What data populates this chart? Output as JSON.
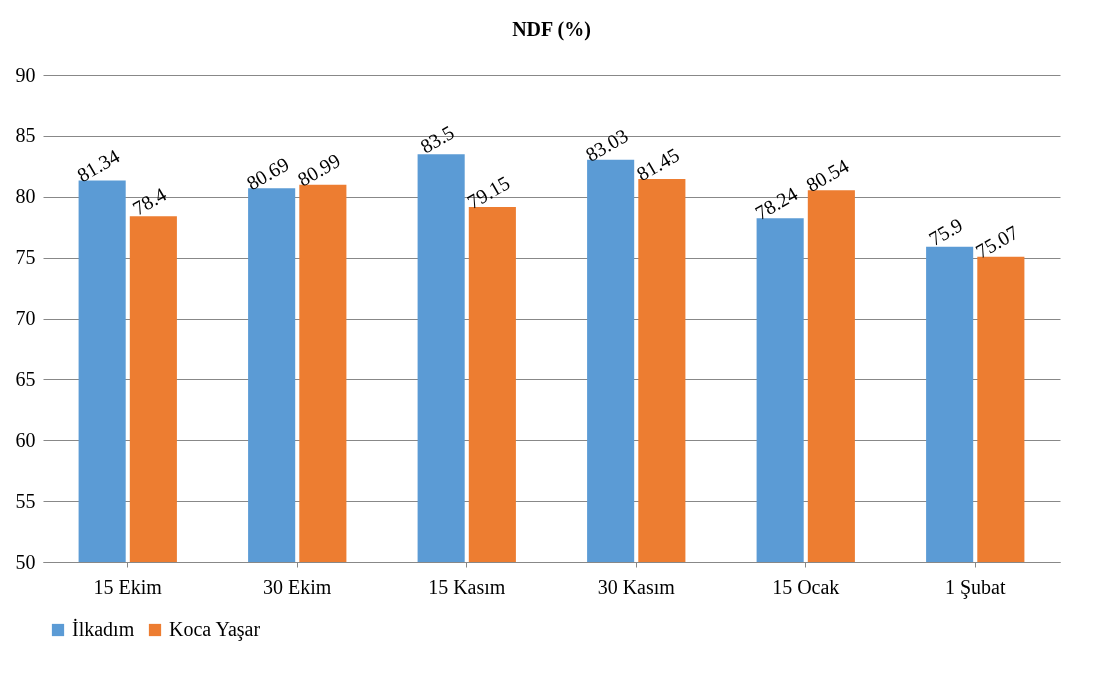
{
  "chart_data": {
    "type": "bar",
    "title": "NDF (%)",
    "categories": [
      "15 Ekim",
      "30 Ekim",
      "15 Kasım",
      "30 Kasım",
      "15 Ocak",
      "1 Şubat"
    ],
    "series": [
      {
        "name": "İlkadım",
        "color": "#5b9bd5",
        "values": [
          81.34,
          80.69,
          83.5,
          83.03,
          78.24,
          75.9
        ]
      },
      {
        "name": "Koca Yaşar",
        "color": "#ed7d31",
        "values": [
          78.4,
          80.99,
          79.15,
          81.45,
          80.54,
          75.07
        ]
      }
    ],
    "ylim": [
      50,
      90
    ],
    "yticks": [
      50,
      55,
      60,
      65,
      70,
      75,
      80,
      85,
      90
    ],
    "grid": "y",
    "legend": "bottom",
    "data_labels": true
  }
}
